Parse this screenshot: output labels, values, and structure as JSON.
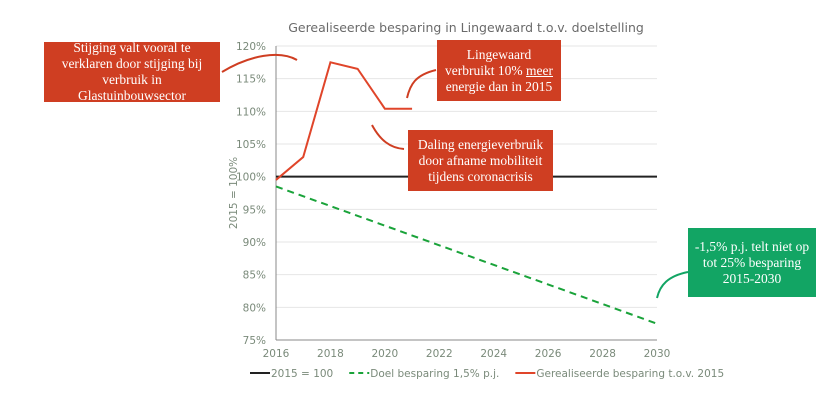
{
  "chart_data": {
    "type": "line",
    "title": "Gerealiseerde besparing in Lingewaard t.o.v. doelstelling",
    "xlabel": "",
    "ylabel": "2015 = 100%",
    "xlim": [
      2016,
      2030
    ],
    "ylim": [
      75,
      120
    ],
    "x_ticks": [
      "2016",
      "2018",
      "2020",
      "2022",
      "2024",
      "2026",
      "2028",
      "2030"
    ],
    "y_ticks": [
      "75%",
      "80%",
      "85%",
      "90%",
      "95%",
      "100%",
      "105%",
      "110%",
      "115%",
      "120%"
    ],
    "grid": true,
    "legend_position": "bottom",
    "series": [
      {
        "name": "2015 = 100",
        "color": "#222222",
        "style": "solid",
        "x": [
          2016,
          2030
        ],
        "y": [
          100,
          100
        ]
      },
      {
        "name": "Doel besparing 1,5% p.j.",
        "color": "#1aa33a",
        "style": "dashed",
        "x": [
          2016,
          2030
        ],
        "y": [
          98.5,
          77.5
        ]
      },
      {
        "name": "Gerealiseerde besparing t.o.v. 2015",
        "color": "#e0452a",
        "style": "solid",
        "x": [
          2016,
          2017,
          2018,
          2019,
          2020,
          2021
        ],
        "y": [
          99.5,
          103,
          117.5,
          116.5,
          110.4,
          110.4
        ]
      }
    ]
  },
  "annotations": {
    "a1": "Stijging valt vooral te verklaren door stijging bij verbruik in Glastuinbouwsector",
    "a2_pre": "Lingewaard verbruikt 10% ",
    "a2_u": "meer",
    "a2_post": " energie dan in 2015",
    "a3": "Daling energieverbruik door afname mobiliteit tijdens coronacrisis",
    "a4": "-1,5% p.j. telt niet op tot 25% besparing 2015-2030"
  },
  "colors": {
    "annotation_red": "#cf3e22",
    "annotation_green": "#12a564"
  }
}
